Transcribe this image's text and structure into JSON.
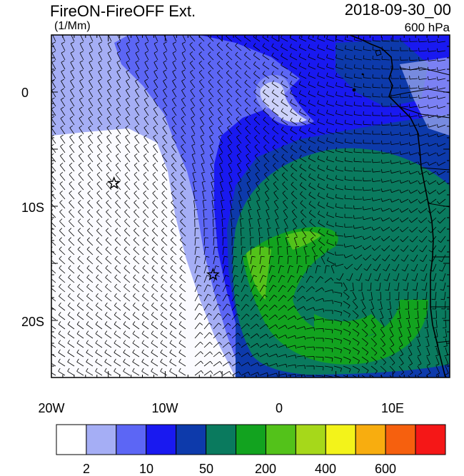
{
  "header": {
    "title": "FireON-FireOFF Ext.",
    "units": "(1/Mm)",
    "datetime": "2018-09-30_00",
    "level": "600 hPa"
  },
  "map": {
    "lon_labels": [
      "20W",
      "10W",
      "0",
      "10E"
    ],
    "lat_labels": [
      "0",
      "10S",
      "20S"
    ]
  },
  "colorbar": {
    "tick_labels": [
      "2",
      "10",
      "50",
      "200",
      "400",
      "600"
    ],
    "colors": [
      "#ffffff",
      "#a5aef5",
      "#5c66f5",
      "#1919f0",
      "#0d3aab",
      "#0a7a5e",
      "#12a31f",
      "#53c21a",
      "#a6d81a",
      "#f3f31a",
      "#f8ad0f",
      "#f6600e",
      "#f51717"
    ]
  },
  "markers": [
    {
      "name": "star",
      "lon": -14.5,
      "lat": -8.0
    },
    {
      "name": "star",
      "lon": -5.8,
      "lat": -16.0
    }
  ]
}
